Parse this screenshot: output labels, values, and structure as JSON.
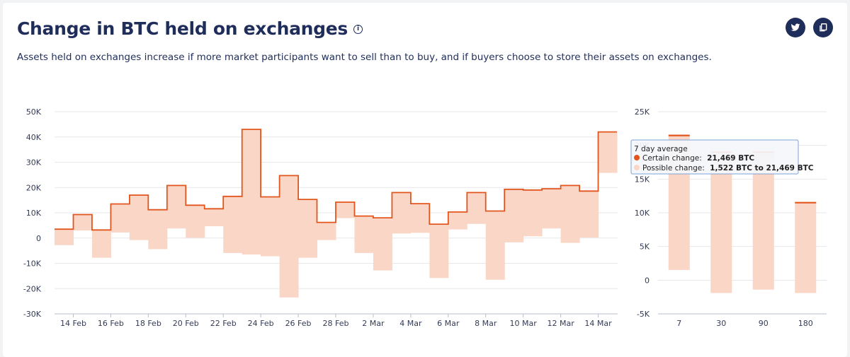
{
  "header": {
    "title": "Change in BTC held on exchanges",
    "info_icon": "info-icon",
    "subtitle": "Assets held on exchanges increase if more market participants want to sell than to buy, and if buyers choose to store their assets on exchanges."
  },
  "actions": [
    {
      "name": "twitter-share-button",
      "icon": "twitter-icon"
    },
    {
      "name": "copy-button",
      "icon": "copy-icon"
    }
  ],
  "colors": {
    "certain": "#e2561e",
    "possible": "#f9d6c6",
    "grid": "#e7e7ec",
    "text": "#1f2d5a"
  },
  "chart_data": [
    {
      "type": "area",
      "ylim": [
        -30000,
        50000
      ],
      "y_ticks": [
        50000,
        40000,
        30000,
        20000,
        10000,
        0,
        -10000,
        -20000,
        -30000
      ],
      "y_tick_labels": [
        "50K",
        "40K",
        "30K",
        "20K",
        "10K",
        "0",
        "-10K",
        "-20K",
        "-30K"
      ],
      "x_tick_labels": [
        "14 Feb",
        "16 Feb",
        "18 Feb",
        "20 Feb",
        "22 Feb",
        "24 Feb",
        "26 Feb",
        "28 Feb",
        "2 Mar",
        "4 Mar",
        "6 Mar",
        "8 Mar",
        "10 Mar",
        "12 Mar",
        "14 Mar"
      ],
      "x": [
        "13 Feb",
        "14 Feb",
        "15 Feb",
        "16 Feb",
        "17 Feb",
        "18 Feb",
        "19 Feb",
        "20 Feb",
        "21 Feb",
        "22 Feb",
        "23 Feb",
        "24 Feb",
        "25 Feb",
        "26 Feb",
        "27 Feb",
        "28 Feb",
        "1 Mar",
        "2 Mar",
        "3 Mar",
        "4 Mar",
        "5 Mar",
        "6 Mar",
        "7 Mar",
        "8 Mar",
        "9 Mar",
        "10 Mar",
        "11 Mar",
        "12 Mar",
        "13 Mar",
        "14 Mar"
      ],
      "series": [
        {
          "name": "Certain change",
          "values": [
            3500,
            9300,
            3200,
            13500,
            17000,
            11200,
            20800,
            13000,
            11600,
            16500,
            43000,
            16300,
            24700,
            15300,
            6200,
            14200,
            8700,
            8000,
            18000,
            13600,
            5500,
            10300,
            18000,
            10700,
            19300,
            19000,
            19500,
            20800,
            18600,
            42000
          ]
        },
        {
          "name": "Possible change",
          "values": [
            -2800,
            3000,
            -7800,
            2200,
            -800,
            -4400,
            3800,
            100,
            4700,
            -5900,
            -6500,
            -7200,
            -23500,
            -7800,
            -800,
            7900,
            -5900,
            -12800,
            1800,
            2100,
            -15800,
            3400,
            5600,
            -16500,
            -1700,
            700,
            3800,
            -1900,
            200,
            25800
          ]
        }
      ]
    },
    {
      "type": "bar",
      "ylim": [
        -5000,
        25000
      ],
      "y_ticks": [
        25000,
        20000,
        15000,
        10000,
        5000,
        0,
        -5000
      ],
      "y_tick_labels": [
        "25K",
        "20K",
        "15K",
        "10K",
        "5K",
        "0",
        "-5K"
      ],
      "categories": [
        "7",
        "30",
        "90",
        "180"
      ],
      "series": [
        {
          "name": "Certain change",
          "values": [
            21469,
            19000,
            19000,
            11500
          ]
        },
        {
          "name": "Possible change",
          "values": [
            1522,
            -1900,
            -1400,
            -1900
          ]
        }
      ],
      "tooltip": {
        "title": "7 day average",
        "certain_label": "Certain change:",
        "certain_value": "21,469 BTC",
        "possible_label": "Possible change:",
        "possible_value": "1,522 BTC to 21,469 BTC"
      }
    }
  ]
}
